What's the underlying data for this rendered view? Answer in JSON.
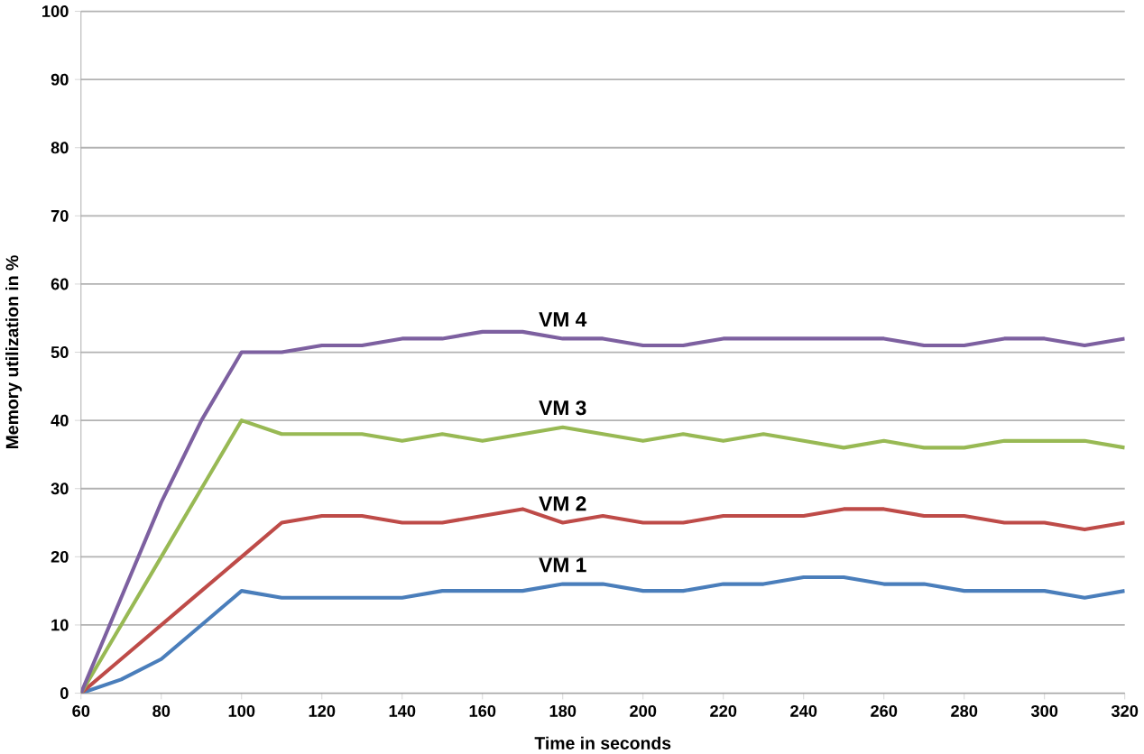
{
  "chart_data": {
    "type": "line",
    "xlabel": "Time in seconds",
    "ylabel": "Memory utilization in %",
    "x": [
      60,
      70,
      80,
      90,
      100,
      110,
      120,
      130,
      140,
      150,
      160,
      170,
      180,
      190,
      200,
      210,
      220,
      230,
      240,
      250,
      260,
      270,
      280,
      290,
      300,
      310,
      320
    ],
    "series": [
      {
        "name": "VM 1",
        "color": "#4a7ebb",
        "values": [
          0,
          2,
          5,
          10,
          15,
          14,
          14,
          14,
          14,
          15,
          15,
          15,
          16,
          16,
          15,
          15,
          16,
          16,
          17,
          17,
          16,
          16,
          15,
          15,
          15,
          14,
          15
        ]
      },
      {
        "name": "VM 2",
        "color": "#be4b48",
        "values": [
          0,
          5,
          10,
          15,
          20,
          25,
          26,
          26,
          25,
          25,
          26,
          27,
          25,
          26,
          25,
          25,
          26,
          26,
          26,
          27,
          27,
          26,
          26,
          25,
          25,
          24,
          25
        ]
      },
      {
        "name": "VM 3",
        "color": "#98b954",
        "values": [
          0,
          10,
          20,
          30,
          40,
          38,
          38,
          38,
          37,
          38,
          37,
          38,
          39,
          38,
          37,
          38,
          37,
          38,
          37,
          36,
          37,
          36,
          36,
          37,
          37,
          37,
          36
        ]
      },
      {
        "name": "VM 4",
        "color": "#7d60a0",
        "values": [
          0,
          14,
          28,
          40,
          50,
          50,
          51,
          51,
          52,
          52,
          53,
          53,
          52,
          52,
          51,
          51,
          52,
          52,
          52,
          52,
          52,
          51,
          51,
          52,
          52,
          51,
          52
        ]
      }
    ],
    "xlim": [
      60,
      320
    ],
    "xticks": [
      60,
      80,
      100,
      120,
      140,
      160,
      180,
      200,
      220,
      240,
      260,
      280,
      300,
      320
    ],
    "ylim": [
      0,
      100
    ],
    "yticks": [
      0,
      10,
      20,
      30,
      40,
      50,
      60,
      70,
      80,
      90,
      100
    ],
    "grid": "y",
    "legend": false,
    "marker": "none",
    "line_style": "solid"
  }
}
